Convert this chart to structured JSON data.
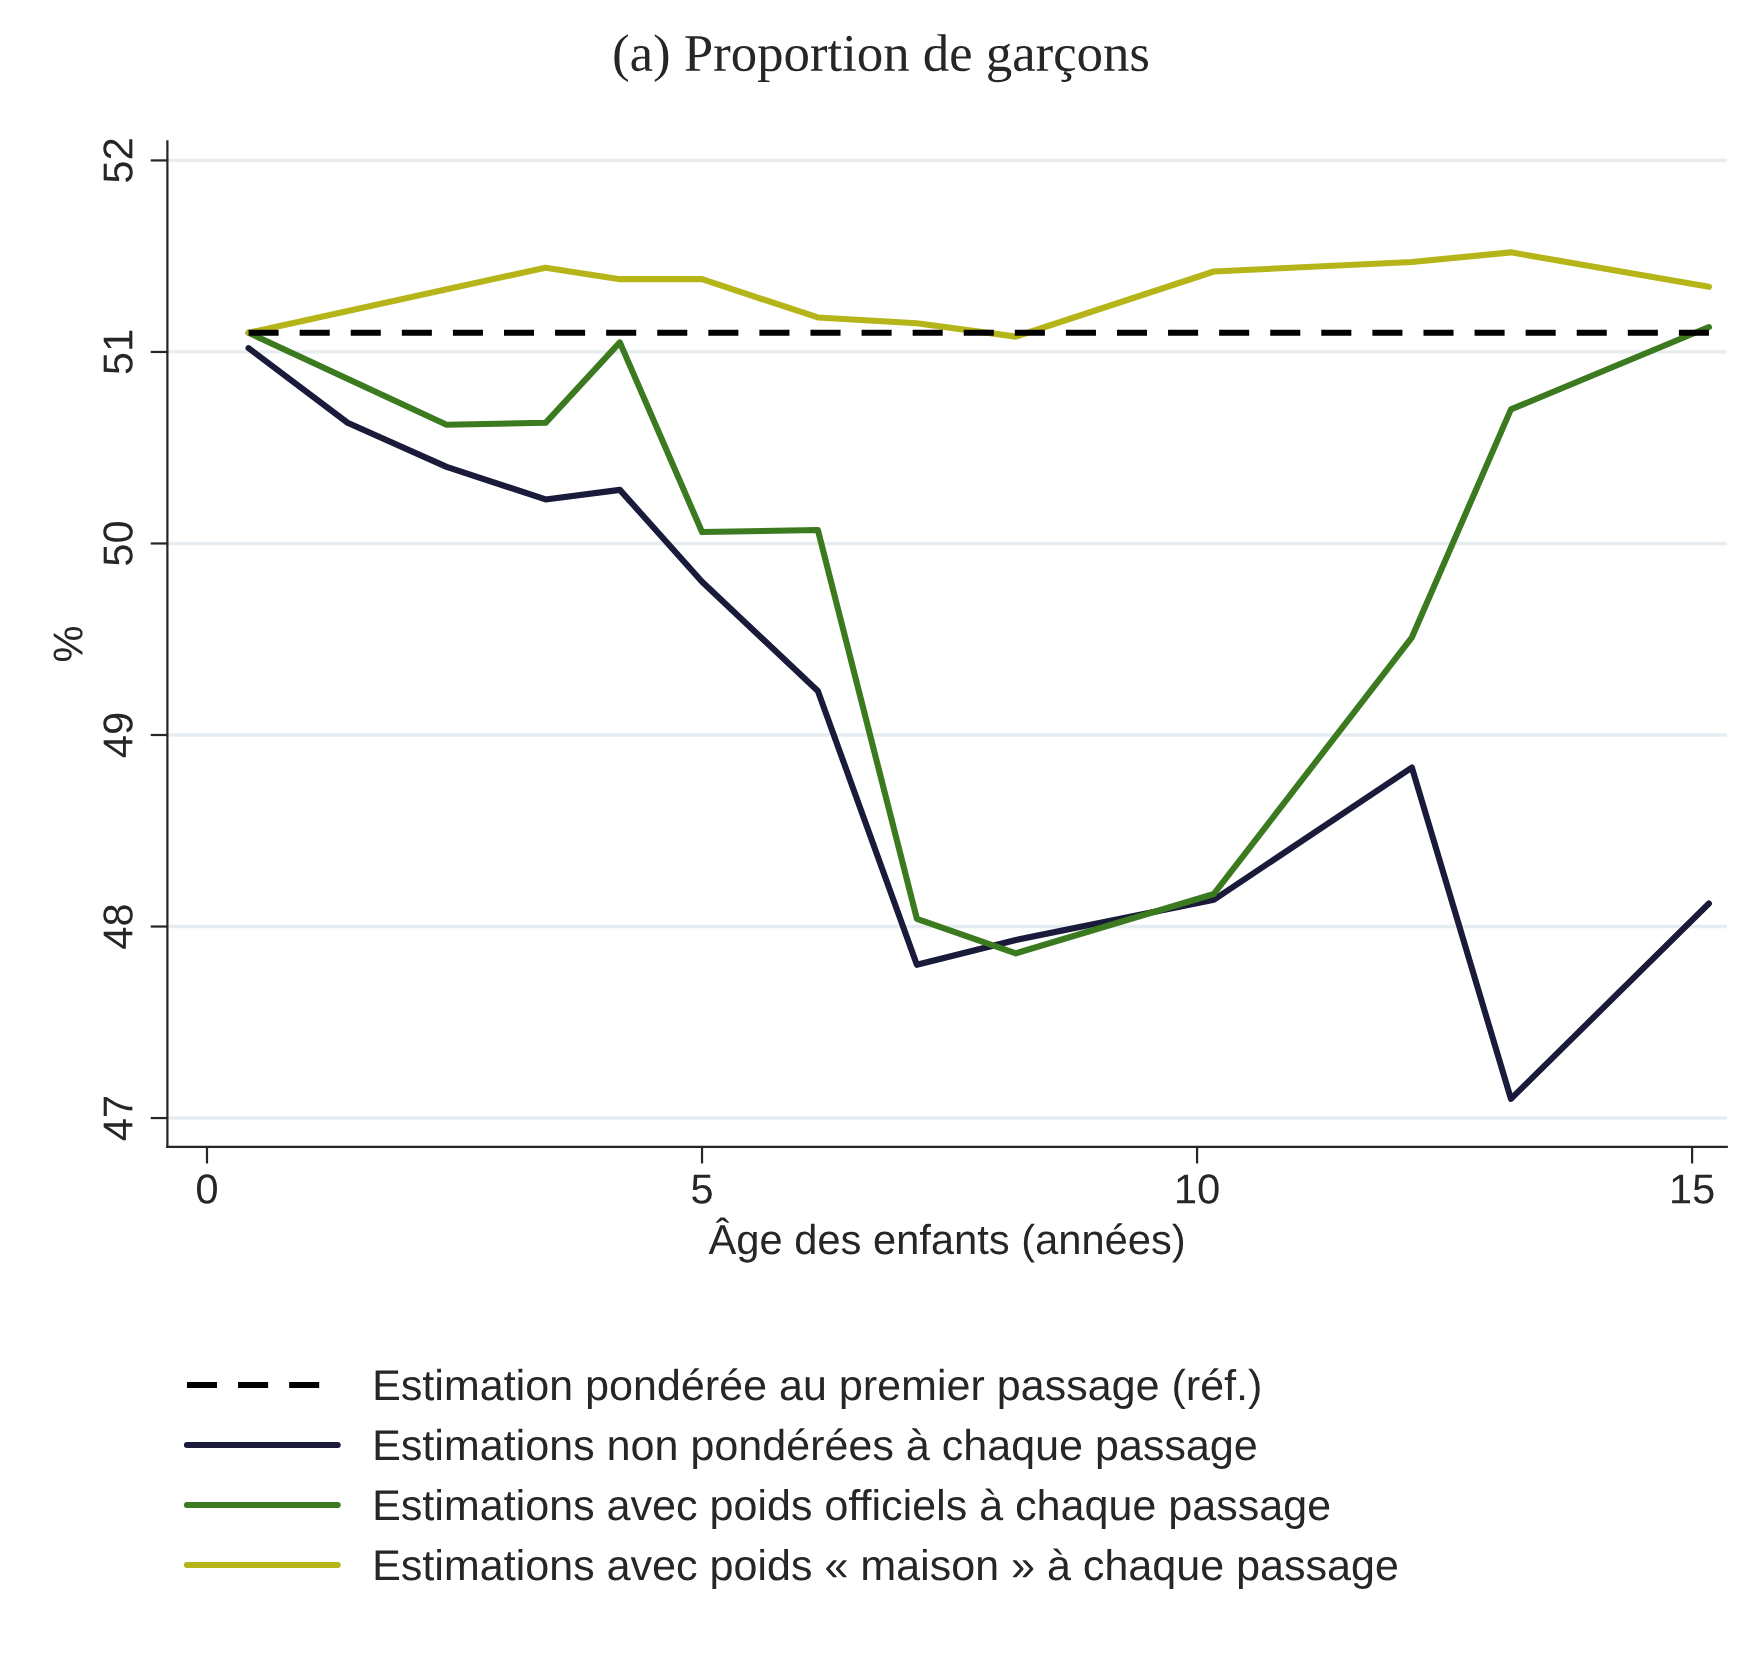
{
  "chart_data": {
    "type": "line",
    "title": "(a) Proportion de garçons",
    "xlabel": "Âge des enfants (années)",
    "ylabel": "%",
    "xlim": [
      -0.4,
      15.35
    ],
    "xticks": [
      0,
      5,
      10,
      15
    ],
    "ylim": [
      46.85,
      52.1
    ],
    "yticks": [
      47,
      48,
      49,
      50,
      51,
      52
    ],
    "grid": "y",
    "legend": "bottom",
    "marker": "none",
    "series": [
      {
        "name": "Estimation pondérée au premier passage (réf.)",
        "color": "#000000",
        "line_style": "dashed",
        "x": [
          0.42,
          15.17
        ],
        "values": [
          51.1,
          51.1
        ]
      },
      {
        "name": "Estimations non pondérées à chaque passage",
        "color": "#1a1a3a",
        "x": [
          0.42,
          1.42,
          2.42,
          3.42,
          4.17,
          5.0,
          6.17,
          7.17,
          8.17,
          10.17,
          12.17,
          13.17,
          15.17
        ],
        "values": [
          51.02,
          50.63,
          50.4,
          50.23,
          50.28,
          49.8,
          49.23,
          47.8,
          47.93,
          48.14,
          48.83,
          47.1,
          48.12
        ]
      },
      {
        "name": "Estimations avec poids officiels à chaque passage",
        "color": "#3b7a1e",
        "x": [
          0.42,
          2.42,
          3.42,
          4.17,
          5.0,
          6.17,
          7.17,
          8.17,
          10.17,
          12.17,
          13.17,
          15.17
        ],
        "values": [
          51.1,
          50.62,
          50.63,
          51.05,
          50.06,
          50.07,
          48.04,
          47.86,
          48.17,
          49.51,
          50.7,
          51.13
        ]
      },
      {
        "name": "Estimations avec poids « maison » à chaque passage",
        "color": "#b5b51a",
        "x": [
          0.42,
          3.42,
          4.17,
          5.0,
          6.17,
          7.17,
          8.17,
          10.17,
          12.17,
          13.17,
          15.17
        ],
        "values": [
          51.1,
          51.44,
          51.38,
          51.38,
          51.18,
          51.15,
          51.08,
          51.42,
          51.47,
          51.52,
          51.34
        ]
      }
    ]
  }
}
